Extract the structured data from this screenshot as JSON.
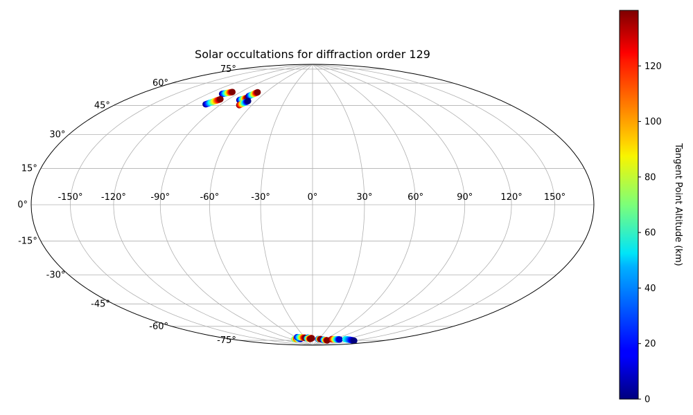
{
  "chart_data": {
    "type": "scatter",
    "projection": "hammer",
    "title": "Solar occultations for diffraction order 129",
    "grid": true,
    "longitude_ticks": [
      -150,
      -120,
      -90,
      -60,
      -30,
      0,
      30,
      60,
      90,
      120,
      150
    ],
    "longitude_tick_labels": [
      "-150°",
      "-120°",
      "-90°",
      "-60°",
      "-30°",
      "0°",
      "30°",
      "60°",
      "90°",
      "120°",
      "150°"
    ],
    "latitude_ticks": [
      -75,
      -60,
      -45,
      -30,
      -15,
      0,
      15,
      30,
      45,
      60,
      75
    ],
    "latitude_tick_labels": [
      "-75°",
      "-60°",
      "-45°",
      "-30°",
      "-15°",
      "0°",
      "15°",
      "30°",
      "45°",
      "60°",
      "75°"
    ],
    "colorbar": {
      "label": "Tangent Point Altitude (km)",
      "range": [
        0,
        140
      ],
      "ticks": [
        0,
        20,
        40,
        60,
        80,
        100,
        120
      ],
      "tick_labels": [
        "0",
        "20",
        "40",
        "60",
        "80",
        "100",
        "120"
      ],
      "colormap": "jet"
    },
    "occultations": [
      {
        "lon": [
          -106,
          -99
        ],
        "lat": [
          63,
          65
        ],
        "altitude": [
          0,
          140
        ]
      },
      {
        "lon": [
          -104,
          -98
        ],
        "lat": [
          56,
          60
        ],
        "altitude": [
          0,
          140
        ]
      },
      {
        "lon": [
          -78,
          -73
        ],
        "lat": [
          61,
          63
        ],
        "altitude": [
          0,
          140
        ]
      },
      {
        "lon": [
          -74,
          -70
        ],
        "lat": [
          64,
          67
        ],
        "altitude": [
          0,
          140
        ]
      },
      {
        "lon": [
          -72,
          -68
        ],
        "lat": [
          58,
          61
        ],
        "altitude": [
          140,
          0
        ]
      },
      {
        "lon": [
          -80,
          -60
        ],
        "lat": [
          -84,
          -84
        ],
        "altitude": [
          60,
          140
        ]
      },
      {
        "lon": [
          -70,
          -55
        ],
        "lat": [
          -84,
          -84.5
        ],
        "altitude": [
          120,
          10
        ]
      },
      {
        "lon": [
          -57,
          -30
        ],
        "lat": [
          -83,
          -84
        ],
        "altitude": [
          10,
          140
        ]
      },
      {
        "lon": [
          -20,
          -3
        ],
        "lat": [
          -84,
          -84.5
        ],
        "altitude": [
          10,
          140
        ]
      },
      {
        "lon": [
          -25,
          -10
        ],
        "lat": [
          -84.5,
          -85
        ],
        "altitude": [
          30,
          140
        ]
      },
      {
        "lon": [
          28,
          40
        ],
        "lat": [
          -85,
          -85
        ],
        "altitude": [
          10,
          140
        ]
      },
      {
        "lon": [
          55,
          80
        ],
        "lat": [
          -85.2,
          -85.2
        ],
        "altitude": [
          10,
          140
        ]
      },
      {
        "lon": [
          85,
          110
        ],
        "lat": [
          -84,
          -83
        ],
        "altitude": [
          140,
          10
        ]
      },
      {
        "lon": [
          120,
          150
        ],
        "lat": [
          -82,
          -81
        ],
        "altitude": [
          60,
          0
        ]
      }
    ]
  }
}
